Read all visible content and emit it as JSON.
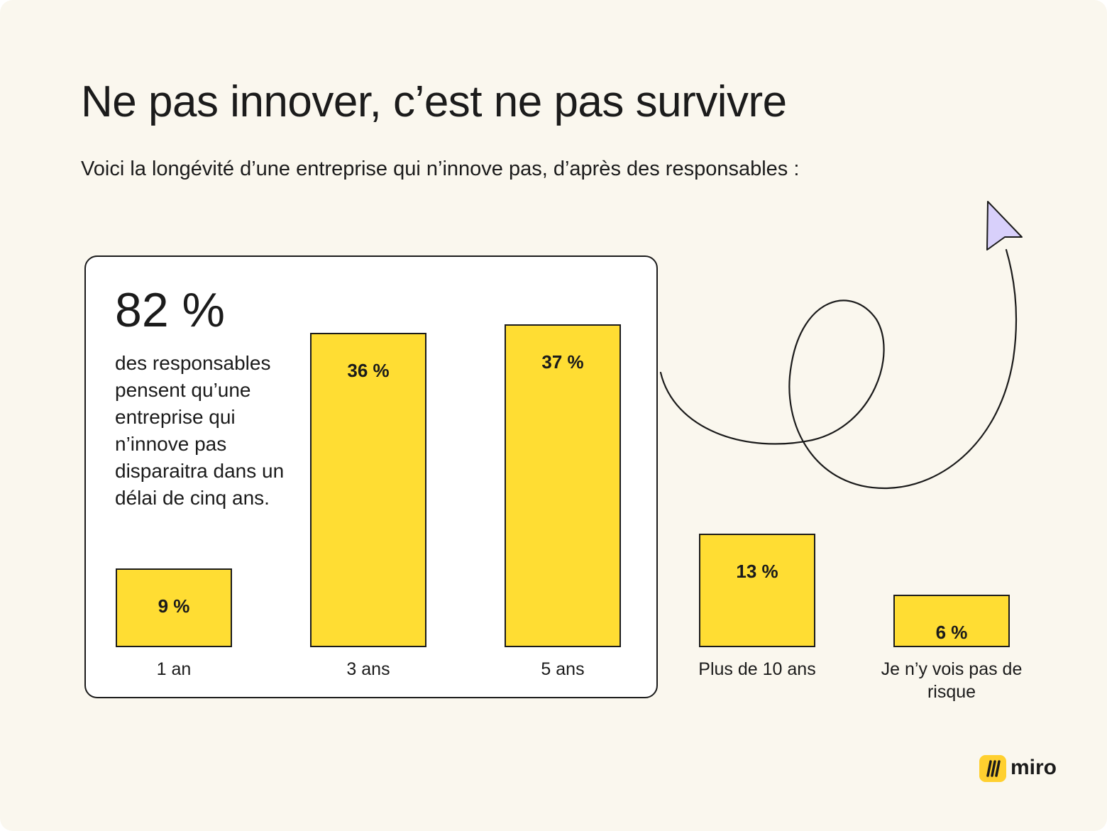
{
  "title": "Ne pas innover, c’est ne pas survivre",
  "subtitle": "Voici la longévité d’une entreprise qui n’innove pas, d’après des responsables :",
  "highlight": {
    "value": "82 %",
    "description": "des responsables pensent qu’une entreprise qui n’innove pas disparaitra dans un délai de cinq ans."
  },
  "brand": {
    "name": "miro"
  },
  "colors": {
    "bar": "#ffdd33",
    "background": "#faf7ee",
    "cursor": "#d8d0fb",
    "ink": "#1b1b1b"
  },
  "icons": {
    "arrow": "cursor-arrow-icon",
    "logo": "miro-logo-icon"
  },
  "chart_data": {
    "type": "bar",
    "categories": [
      "1 an",
      "3 ans",
      "5 ans",
      "Plus de 10 ans",
      "Je n’y vois pas de risque"
    ],
    "values": [
      9,
      36,
      37,
      13,
      6
    ],
    "value_labels": [
      "9 %",
      "36 %",
      "37 %",
      "13 %",
      "6 %"
    ],
    "unit": "%",
    "ylim": [
      0,
      40
    ],
    "grid": false,
    "legend": "none"
  }
}
